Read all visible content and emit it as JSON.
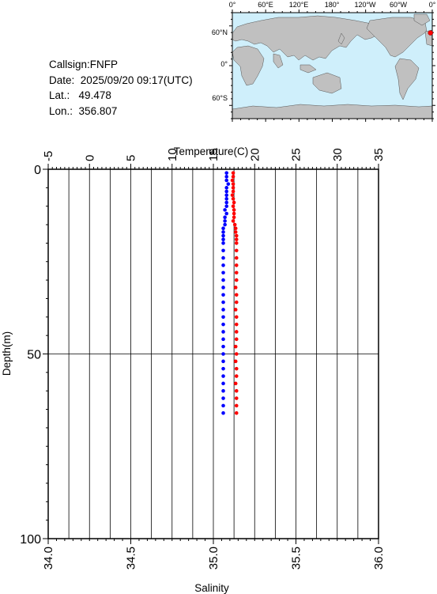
{
  "station": {
    "callsign_label": "Callsign:",
    "callsign": "FNFP",
    "date_label": "Date:",
    "date": "2025/09/20 09:17(UTC)",
    "lat_label": "Lat.:",
    "lat": "49.478",
    "lon_label": "Lon.:",
    "lon": "356.807"
  },
  "map": {
    "lon_ticks": [
      "0°",
      "60°E",
      "120°E",
      "180°",
      "120°W",
      "60°W",
      "0°"
    ],
    "lat_ticks": [
      "60°N",
      "0°",
      "60°S"
    ],
    "ocean_color": "#cfeffb",
    "land_color": "#c0c0c0",
    "marker_color": "#ff0000",
    "marker": {
      "lon": 356.807,
      "lat": 49.478
    }
  },
  "chart_data": {
    "type": "scatter",
    "title": "",
    "top_axis_label": "Temperature(C)",
    "bottom_axis_label": "Salinity",
    "ylabel": "Depth(m)",
    "temperature_ticks": [
      "-5",
      "0",
      "5",
      "10",
      "15",
      "20",
      "25",
      "30",
      "35"
    ],
    "salinity_ticks": [
      "34.0",
      "34.5",
      "35.0",
      "35.5",
      "36.0"
    ],
    "depth_ticks": [
      "0",
      "50",
      "100"
    ],
    "temperature_range": [
      -5,
      35
    ],
    "salinity_range": [
      34.0,
      36.0
    ],
    "depth_range": [
      0,
      100
    ],
    "grid": true,
    "series": [
      {
        "axis": "temperature",
        "color": "#ff0000",
        "depth": [
          1,
          2,
          3,
          4,
          5,
          6,
          7,
          8,
          9,
          10,
          11,
          12,
          13,
          14,
          15,
          16,
          17,
          18,
          19,
          20,
          22,
          24,
          26,
          28,
          30,
          32,
          34,
          36,
          38,
          40,
          42,
          44,
          46,
          48,
          50,
          52,
          54,
          56,
          58,
          60,
          62,
          64,
          66
        ],
        "values": [
          17.4,
          17.4,
          17.3,
          17.4,
          17.4,
          17.4,
          17.3,
          17.4,
          17.5,
          17.4,
          17.5,
          17.5,
          17.5,
          17.4,
          17.6,
          17.7,
          17.7,
          17.8,
          17.8,
          17.8,
          17.8,
          17.8,
          17.8,
          17.8,
          17.8,
          17.7,
          17.8,
          17.8,
          17.7,
          17.8,
          17.8,
          17.8,
          17.8,
          17.7,
          17.8,
          17.7,
          17.8,
          17.8,
          17.7,
          17.8,
          17.8,
          17.8,
          17.8
        ]
      },
      {
        "axis": "salinity",
        "color": "#0000ff",
        "depth": [
          1,
          2,
          3,
          4,
          5,
          6,
          7,
          8,
          9,
          10,
          11,
          12,
          13,
          14,
          15,
          16,
          17,
          18,
          19,
          20,
          22,
          24,
          26,
          28,
          30,
          32,
          34,
          36,
          38,
          40,
          42,
          44,
          46,
          48,
          50,
          52,
          54,
          56,
          58,
          60,
          62,
          64,
          66
        ],
        "values": [
          35.08,
          35.08,
          35.08,
          35.09,
          35.08,
          35.08,
          35.08,
          35.08,
          35.08,
          35.08,
          35.07,
          35.08,
          35.07,
          35.07,
          35.07,
          35.06,
          35.06,
          35.06,
          35.06,
          35.06,
          35.06,
          35.06,
          35.06,
          35.06,
          35.06,
          35.06,
          35.06,
          35.06,
          35.06,
          35.06,
          35.06,
          35.06,
          35.06,
          35.06,
          35.06,
          35.06,
          35.06,
          35.06,
          35.06,
          35.06,
          35.06,
          35.06,
          35.06
        ]
      }
    ]
  }
}
